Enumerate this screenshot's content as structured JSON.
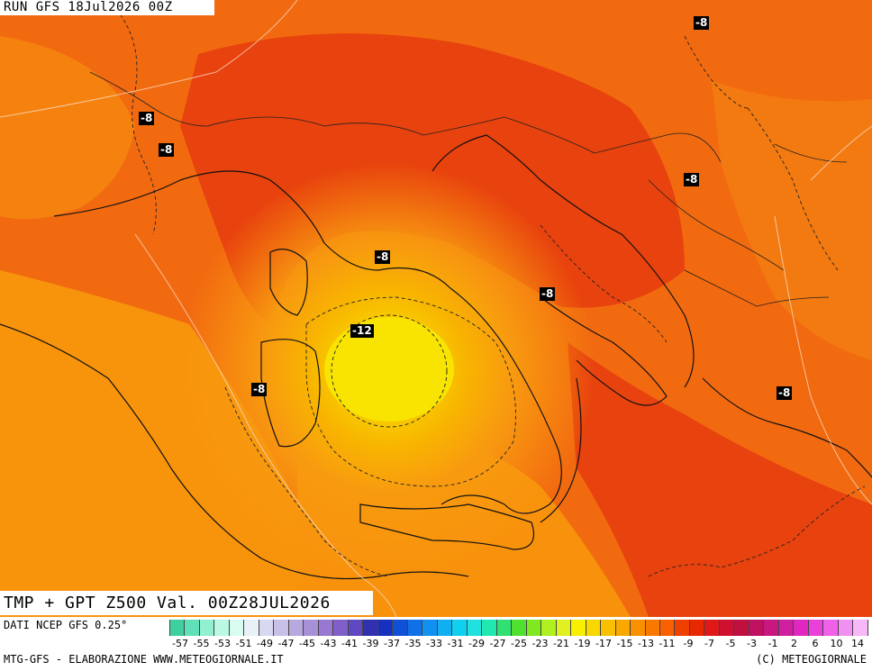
{
  "header": {
    "run_label": "RUN GFS 18Jul2026 00Z"
  },
  "product": {
    "title": "TMP + GPT Z500 Val. 00Z28JUL2026"
  },
  "isotherm_labels": [
    {
      "text": "-8"
    },
    {
      "text": "-8"
    },
    {
      "text": "-8"
    },
    {
      "text": "-8"
    },
    {
      "text": "-8"
    },
    {
      "text": "-8"
    },
    {
      "text": "-12"
    },
    {
      "text": "-8"
    },
    {
      "text": "-8"
    }
  ],
  "legend": {
    "data_source": "DATI NCEP GFS 0.25°",
    "tick_labels": [
      "-57",
      "-55",
      "-53",
      "-51",
      "-49",
      "-47",
      "-45",
      "-43",
      "-41",
      "-39",
      "-37",
      "-35",
      "-33",
      "-31",
      "-29",
      "-27",
      "-25",
      "-23",
      "-21",
      "-19",
      "-17",
      "-15",
      "-13",
      "-11",
      "-9",
      "-7",
      "-5",
      "-3",
      "-1",
      "2",
      "6",
      "10",
      "14"
    ],
    "colors": [
      "#40d0a0",
      "#60e0b8",
      "#90f0d0",
      "#b8f8e4",
      "#d8fcf0",
      "#e8f0f8",
      "#d8d8f0",
      "#c8c0e8",
      "#b8a8e0",
      "#a890d8",
      "#9878d0",
      "#8060c8",
      "#6048c0",
      "#3030b0",
      "#1830c0",
      "#1050d8",
      "#1070e8",
      "#1090f0",
      "#10b0f0",
      "#10d0f0",
      "#20e0e0",
      "#20e8b0",
      "#30e070",
      "#50e030",
      "#80e820",
      "#b0f020",
      "#e0f020",
      "#f8f000",
      "#f8d800",
      "#f8c000",
      "#f8a800",
      "#f89000",
      "#f87800",
      "#f86000",
      "#f04000",
      "#e82800",
      "#e01818",
      "#d01030",
      "#c01040",
      "#c01060",
      "#c81880",
      "#d020a0",
      "#e028c0",
      "#e840d8",
      "#f060e8",
      "#f090f0",
      "#f8b8f8"
    ],
    "footer_left": "MTG-GFS - ELABORAZIONE WWW.METEOGIORNALE.IT",
    "footer_right": "(C) METEOGIORNALE"
  }
}
